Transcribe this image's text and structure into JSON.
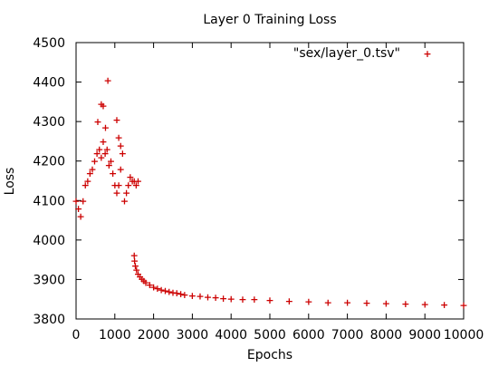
{
  "chart_data": {
    "type": "scatter",
    "title": "Layer 0 Training Loss",
    "xlabel": "Epochs",
    "ylabel": "Loss",
    "xlim": [
      0,
      10000
    ],
    "ylim": [
      3800,
      4500
    ],
    "xticks": [
      0,
      1000,
      2000,
      3000,
      4000,
      5000,
      6000,
      7000,
      8000,
      9000,
      10000
    ],
    "yticks": [
      3800,
      3900,
      4000,
      4100,
      4200,
      4300,
      4400,
      4500
    ],
    "grid": false,
    "legend_position": "top-right",
    "marker": "+",
    "series": [
      {
        "name": "\"sex/layer_0.tsv\"",
        "color": "#cc0000",
        "x": [
          0,
          60,
          120,
          180,
          240,
          300,
          360,
          420,
          480,
          540,
          600,
          650,
          700,
          750,
          800,
          850,
          900,
          950,
          1000,
          1050,
          1100,
          1150,
          1200,
          1250,
          1300,
          1350,
          1400,
          1450,
          1500,
          1550,
          1600,
          650,
          700,
          820,
          560,
          760,
          1050,
          1100,
          1150,
          1500,
          1510,
          1530,
          1560,
          1600,
          1650,
          1700,
          1750,
          1800,
          1900,
          2000,
          2100,
          2200,
          2300,
          2400,
          2500,
          2600,
          2700,
          2800,
          3000,
          3200,
          3400,
          3600,
          3800,
          4000,
          4300,
          4600,
          5000,
          5500,
          6000,
          6500,
          7000,
          7500,
          8000,
          8500,
          9000,
          9500,
          10000
        ],
        "y": [
          4100,
          4080,
          4060,
          4100,
          4140,
          4150,
          4170,
          4180,
          4200,
          4220,
          4230,
          4210,
          4250,
          4220,
          4230,
          4190,
          4200,
          4170,
          4140,
          4120,
          4140,
          4180,
          4220,
          4100,
          4120,
          4140,
          4160,
          4150,
          4150,
          4140,
          4150,
          4345,
          4340,
          4405,
          4300,
          4285,
          4305,
          4260,
          4240,
          3962,
          3948,
          3935,
          3925,
          3915,
          3908,
          3902,
          3897,
          3893,
          3887,
          3882,
          3878,
          3875,
          3872,
          3870,
          3868,
          3866,
          3864,
          3862,
          3860,
          3858,
          3856,
          3855,
          3853,
          3852,
          3851,
          3850,
          3848,
          3846,
          3845,
          3843,
          3842,
          3841,
          3840,
          3839,
          3838,
          3837,
          3836
        ]
      }
    ]
  }
}
